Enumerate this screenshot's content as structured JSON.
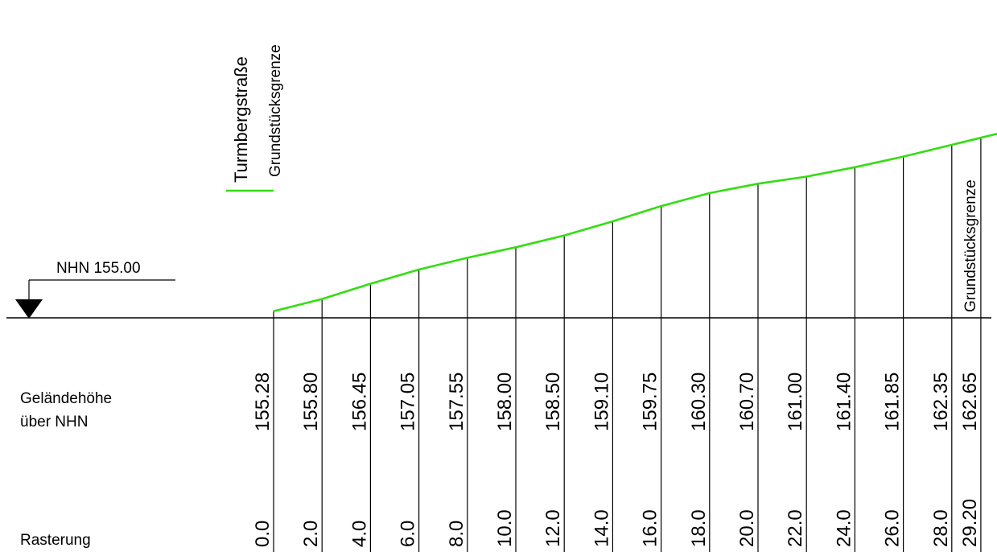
{
  "labels": {
    "street": "Turmbergstraße",
    "boundary_start": "Grundstücksgrenze",
    "boundary_end": "Grundstücksgrenze",
    "datum": "NHN 155.00",
    "row_heights_line1": "Geländehöhe",
    "row_heights_line2": "über NHN",
    "row_grid": "Rasterung"
  },
  "colors": {
    "terrain": "#33dd11",
    "lines": "#000000"
  },
  "chart_data": {
    "type": "line",
    "datum": 155.0,
    "xlim": [
      0.0,
      29.2
    ],
    "stations": [
      {
        "grid": "0.0",
        "height": "155.28",
        "x": 0.0,
        "y": 155.28
      },
      {
        "grid": "2.0",
        "height": "155.80",
        "x": 2.0,
        "y": 155.8
      },
      {
        "grid": "4.0",
        "height": "156.45",
        "x": 4.0,
        "y": 156.45
      },
      {
        "grid": "6.0",
        "height": "157.05",
        "x": 6.0,
        "y": 157.05
      },
      {
        "grid": "8.0",
        "height": "157.55",
        "x": 8.0,
        "y": 157.55
      },
      {
        "grid": "10.0",
        "height": "158.00",
        "x": 10.0,
        "y": 158.0
      },
      {
        "grid": "12.0",
        "height": "158.50",
        "x": 12.0,
        "y": 158.5
      },
      {
        "grid": "14.0",
        "height": "159.10",
        "x": 14.0,
        "y": 159.1
      },
      {
        "grid": "16.0",
        "height": "159.75",
        "x": 16.0,
        "y": 159.75
      },
      {
        "grid": "18.0",
        "height": "160.30",
        "x": 18.0,
        "y": 160.3
      },
      {
        "grid": "20.0",
        "height": "160.70",
        "x": 20.0,
        "y": 160.7
      },
      {
        "grid": "22.0",
        "height": "161.00",
        "x": 22.0,
        "y": 161.0
      },
      {
        "grid": "24.0",
        "height": "161.40",
        "x": 24.0,
        "y": 161.4
      },
      {
        "grid": "26.0",
        "height": "161.85",
        "x": 26.0,
        "y": 161.85
      },
      {
        "grid": "28.0",
        "height": "162.35",
        "x": 28.0,
        "y": 162.35
      },
      {
        "grid": "29.20",
        "height": "162.65",
        "x": 29.2,
        "y": 162.65
      }
    ]
  }
}
